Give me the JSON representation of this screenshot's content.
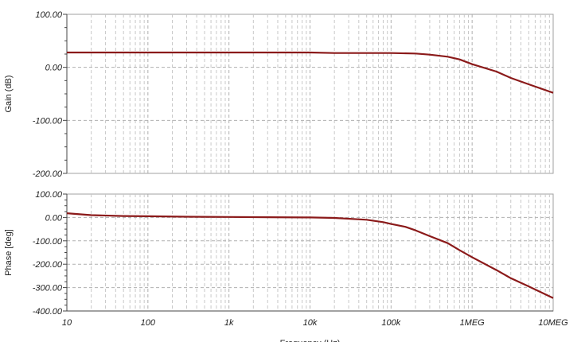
{
  "chart_data": [
    {
      "type": "line",
      "ylabel": "Gain (dB)",
      "xscale": "log",
      "xlim": [
        10,
        10000000
      ],
      "ylim": [
        -200,
        100
      ],
      "yticks": [
        100,
        0,
        -100,
        -200
      ],
      "yticklabels": [
        "100.00",
        "0.00",
        "-100.00",
        "-200.00"
      ],
      "grid": true,
      "series": [
        {
          "color": "#8b1a1a",
          "x": [
            10,
            100,
            1000,
            10000,
            20000,
            50000,
            100000,
            200000,
            300000,
            500000,
            700000,
            1000000,
            2000000,
            3000000,
            5000000,
            10000000
          ],
          "y": [
            28,
            28,
            28,
            28,
            27,
            27,
            27,
            26,
            24,
            20,
            15,
            6,
            -8,
            -20,
            -32,
            -48
          ]
        }
      ]
    },
    {
      "type": "line",
      "ylabel": "Phase [deg]",
      "xlabel": "Frequency (Hz)",
      "xscale": "log",
      "xlim": [
        10,
        10000000
      ],
      "ylim": [
        -400,
        100
      ],
      "yticks": [
        100,
        0,
        -100,
        -200,
        -300,
        -400
      ],
      "yticklabels": [
        "100.00",
        "0.00",
        "-100.00",
        "-200.00",
        "-300.00",
        "-400.00"
      ],
      "xticks": [
        10,
        100,
        1000,
        10000,
        100000,
        1000000,
        10000000
      ],
      "xticklabels": [
        "10",
        "100",
        "1k",
        "10k",
        "100k",
        "1MEG",
        "10MEG"
      ],
      "grid": true,
      "series": [
        {
          "color": "#8b1a1a",
          "x": [
            10,
            20,
            50,
            100,
            300,
            1000,
            3000,
            10000,
            20000,
            50000,
            80000,
            100000,
            150000,
            200000,
            300000,
            500000,
            700000,
            1000000,
            2000000,
            3000000,
            5000000,
            10000000
          ],
          "y": [
            18,
            10,
            6,
            5,
            3,
            2,
            1,
            0,
            -2,
            -10,
            -20,
            -28,
            -40,
            -55,
            -80,
            -110,
            -140,
            -170,
            -225,
            -260,
            -295,
            -345
          ]
        }
      ]
    }
  ]
}
